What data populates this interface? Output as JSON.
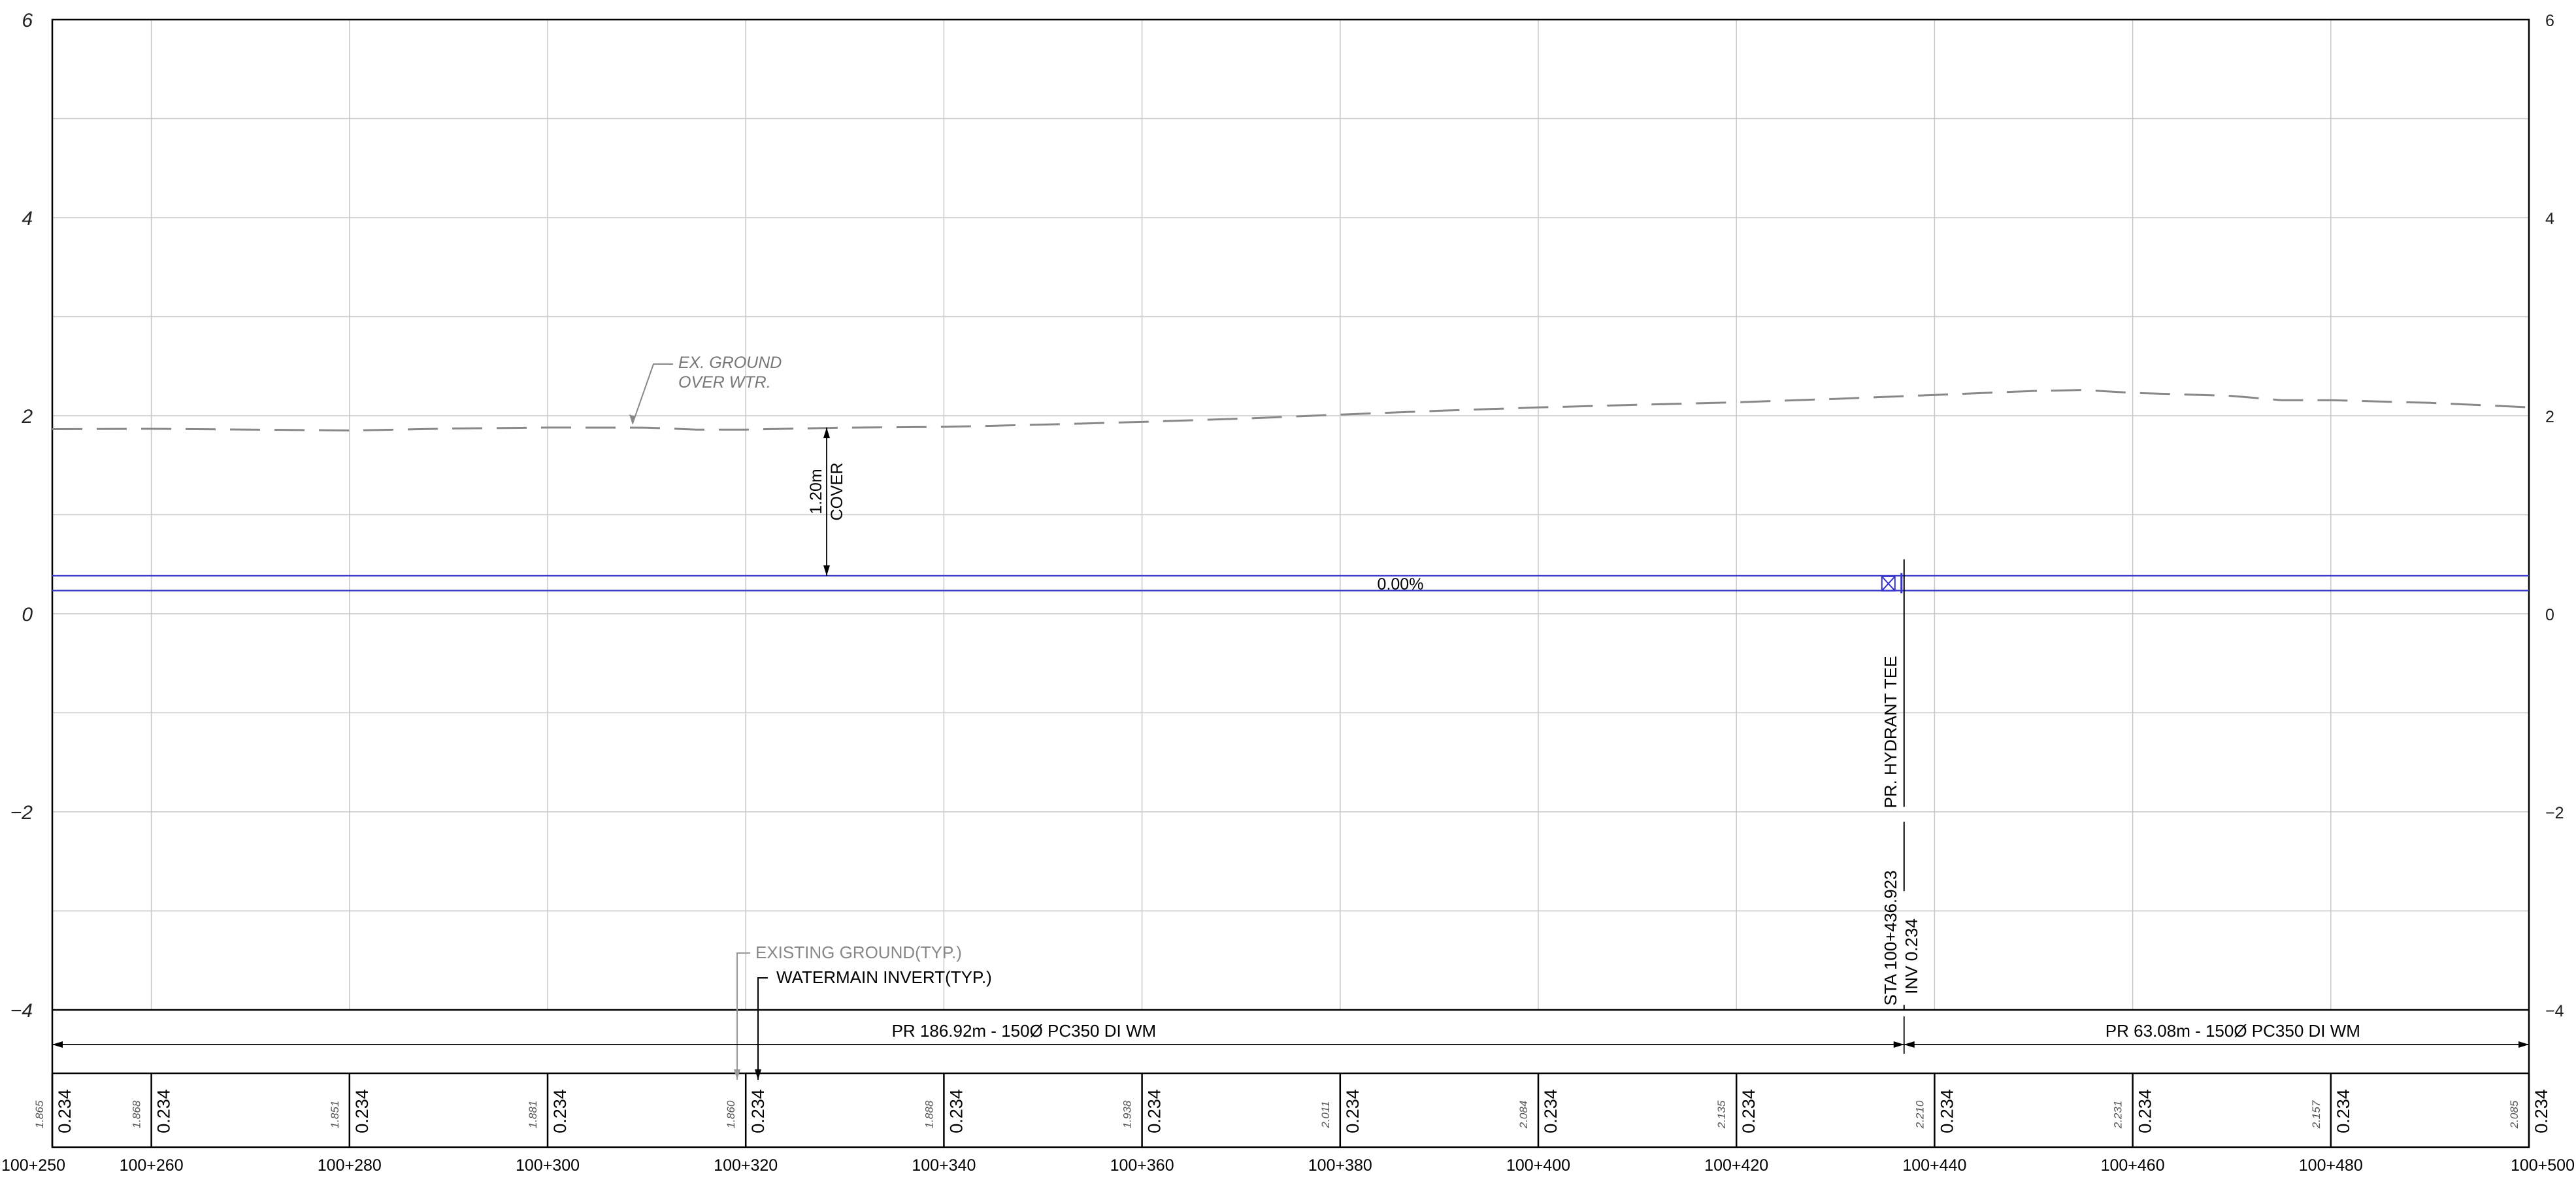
{
  "chart_data": {
    "type": "line",
    "title": "",
    "xlabel": "",
    "ylabel": "",
    "xlim": [
      250,
      500
    ],
    "ylim": [
      -4,
      6
    ],
    "x_ticks": [
      260,
      280,
      300,
      320,
      340,
      360,
      380,
      400,
      420,
      440,
      460,
      480
    ],
    "y_ticks": [
      -4,
      -2,
      0,
      2,
      4,
      6
    ],
    "y_tick_labels": [
      "−4",
      "−2",
      "0",
      "2",
      "4",
      "6"
    ],
    "grid": true,
    "series": [
      {
        "style": "dashed",
        "color": "#888888",
        "x": [
          250,
          260,
          270,
          280,
          290,
          300,
          310,
          315,
          320,
          330,
          340,
          350,
          360,
          370,
          380,
          390,
          400,
          410,
          420,
          430,
          440,
          450,
          455,
          460,
          470,
          475,
          480,
          490,
          500
        ],
        "y": [
          1.865,
          1.868,
          1.86,
          1.851,
          1.87,
          1.881,
          1.88,
          1.86,
          1.86,
          1.88,
          1.888,
          1.91,
          1.938,
          1.97,
          2.011,
          2.05,
          2.084,
          2.11,
          2.135,
          2.17,
          2.21,
          2.25,
          2.26,
          2.231,
          2.2,
          2.157,
          2.157,
          2.13,
          2.085
        ]
      },
      {
        "style": "solid",
        "color": "#3333cc",
        "x": [
          250,
          500
        ],
        "y": [
          0.234,
          0.234
        ]
      },
      {
        "style": "solid",
        "color": "#3333cc",
        "x": [
          250,
          500
        ],
        "y": [
          0.384,
          0.384
        ]
      }
    ],
    "annotations": {
      "ex_ground_line1": "EX. GROUND",
      "ex_ground_line2": "OVER WTR.",
      "cover_line1": "1.20m",
      "cover_line2": "COVER",
      "cover_station": 258,
      "cover_top": 1.88,
      "cover_bottom": 0.384,
      "grade": "0.00%",
      "grade_station": 315,
      "hydrant_station": 436.923,
      "hydrant_label": "PR. HYDRANT TEE",
      "hydrant_sta": "STA 100+436.923",
      "hydrant_inv": "INV 0.234",
      "existing_ground_typ": "EXISTING GROUND(TYP.)",
      "watermain_invert_typ": "WATERMAIN INVERT(TYP.)",
      "pipe_left_label": "PR 186.92m - 150Ø PC350 DI WM",
      "pipe_right_label": "PR 63.08m - 150Ø PC350 DI WM"
    },
    "bottom_table": {
      "stations": [
        250,
        260,
        280,
        300,
        320,
        340,
        360,
        380,
        400,
        420,
        440,
        460,
        480,
        500
      ],
      "station_labels": [
        "100+250",
        "100+260",
        "100+280",
        "100+300",
        "100+320",
        "100+340",
        "100+360",
        "100+380",
        "100+400",
        "100+420",
        "100+440",
        "100+460",
        "100+480",
        "100+500"
      ],
      "existing_ground_values": [
        "1.865",
        "1.868",
        "1.851",
        "1.881",
        "1.860",
        "1.888",
        "1.938",
        "2.011",
        "2.084",
        "2.135",
        "2.210",
        "2.231",
        "2.157",
        "2.085"
      ],
      "invert_values": [
        "0.234",
        "0.234",
        "0.234",
        "0.234",
        "0.234",
        "0.234",
        "0.234",
        "0.234",
        "0.234",
        "0.234",
        "0.234",
        "0.234",
        "0.234",
        "0.234"
      ]
    }
  }
}
